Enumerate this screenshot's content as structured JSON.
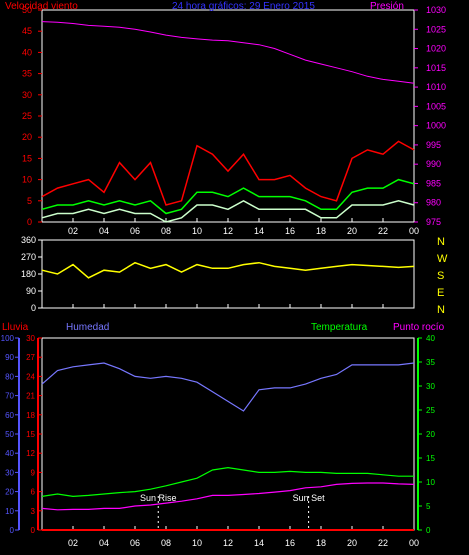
{
  "chart_data": [
    {
      "type": "line",
      "title": "24 hora gráficos: 29 Enero 2015",
      "left_axis_label": "Velocidad viento",
      "right_axis_label": "Presión",
      "ylim_left": [
        0,
        50
      ],
      "yticks_left": [
        "0",
        "5",
        "10",
        "15",
        "20",
        "25",
        "30",
        "35",
        "40",
        "45",
        "50"
      ],
      "ylim_right": [
        975,
        1030
      ],
      "yticks_right": [
        "975",
        "980",
        "985",
        "990",
        "995",
        "1000",
        "1005",
        "1010",
        "1015",
        "1020",
        "1025",
        "1030"
      ],
      "xlim": [
        0,
        24
      ],
      "xticks": [
        "02",
        "04",
        "06",
        "08",
        "10",
        "12",
        "14",
        "16",
        "18",
        "20",
        "22",
        "00"
      ],
      "series": [
        {
          "color": "#ff00ff",
          "axis": "right",
          "x": [
            0,
            1,
            2,
            3,
            4,
            5,
            6,
            7,
            8,
            9,
            10,
            11,
            12,
            13,
            14,
            15,
            16,
            17,
            18,
            19,
            20,
            21,
            22,
            23,
            24
          ],
          "values": [
            1027.0,
            1026.8,
            1026.5,
            1026.0,
            1025.8,
            1025.5,
            1025.0,
            1024.3,
            1023.5,
            1022.9,
            1022.5,
            1022.2,
            1022.0,
            1021.5,
            1021.0,
            1020.0,
            1018.5,
            1017.0,
            1016.0,
            1015.0,
            1014.0,
            1012.8,
            1012.0,
            1011.5,
            1011.0
          ]
        },
        {
          "color": "#ff0000",
          "axis": "left",
          "x": [
            0,
            1,
            2,
            3,
            4,
            5,
            6,
            7,
            8,
            9,
            10,
            11,
            12,
            13,
            14,
            15,
            16,
            17,
            18,
            19,
            20,
            21,
            22,
            23,
            24
          ],
          "values": [
            6,
            8,
            9,
            10,
            7,
            14,
            10,
            14,
            4,
            5,
            18,
            16,
            12,
            16,
            10,
            10,
            11,
            8,
            6,
            5,
            15,
            17,
            16,
            19,
            17
          ]
        },
        {
          "color": "#00ff00",
          "axis": "left",
          "x": [
            0,
            1,
            2,
            3,
            4,
            5,
            6,
            7,
            8,
            9,
            10,
            11,
            12,
            13,
            14,
            15,
            16,
            17,
            18,
            19,
            20,
            21,
            22,
            23,
            24
          ],
          "values": [
            3,
            4,
            4,
            5,
            4,
            5,
            4,
            5,
            2,
            3,
            7,
            7,
            6,
            8,
            6,
            6,
            6,
            5,
            3,
            3,
            7,
            8,
            8,
            10,
            9
          ]
        },
        {
          "color": "#ccffcc",
          "axis": "left",
          "x": [
            0,
            1,
            2,
            3,
            4,
            5,
            6,
            7,
            8,
            9,
            10,
            11,
            12,
            13,
            14,
            15,
            16,
            17,
            18,
            19,
            20,
            21,
            22,
            23,
            24
          ],
          "values": [
            1,
            2,
            2,
            3,
            2,
            3,
            2,
            2,
            0,
            1,
            4,
            4,
            3,
            5,
            3,
            3,
            3,
            3,
            1,
            1,
            4,
            4,
            4,
            5,
            4
          ]
        }
      ]
    },
    {
      "type": "line",
      "ylim": [
        0,
        360
      ],
      "yticks": [
        "0",
        "90",
        "180",
        "270",
        "360"
      ],
      "compass_labels": [
        "N",
        "W",
        "S",
        "E",
        "N"
      ],
      "xlim": [
        0,
        24
      ],
      "series": [
        {
          "color": "#ffff00",
          "x": [
            0,
            1,
            2,
            3,
            4,
            5,
            6,
            7,
            8,
            9,
            10,
            11,
            12,
            13,
            14,
            15,
            16,
            17,
            18,
            19,
            20,
            21,
            22,
            23,
            24
          ],
          "values": [
            200,
            180,
            230,
            160,
            200,
            190,
            240,
            210,
            230,
            190,
            230,
            210,
            210,
            230,
            240,
            220,
            210,
            200,
            210,
            220,
            230,
            225,
            220,
            215,
            220
          ]
        }
      ]
    },
    {
      "type": "line",
      "labels": {
        "rain": "Lluvia",
        "humidity": "Humedad",
        "temperature": "Temperatura",
        "dewpoint": "Punto rocío"
      },
      "humidity_axis": {
        "ylim": [
          0,
          100
        ],
        "ticks": [
          "0",
          "10",
          "20",
          "30",
          "40",
          "50",
          "60",
          "70",
          "80",
          "90",
          "100"
        ]
      },
      "rain_axis": {
        "ylim": [
          0,
          30
        ],
        "ticks": [
          "0",
          "3",
          "6",
          "9",
          "12",
          "15",
          "18",
          "21",
          "24",
          "27",
          "30"
        ]
      },
      "temp_axis": {
        "ylim": [
          0,
          40
        ],
        "ticks": [
          "0",
          "5",
          "10",
          "15",
          "20",
          "25",
          "30",
          "35",
          "40"
        ]
      },
      "xlim": [
        0,
        24
      ],
      "xticks": [
        "02",
        "04",
        "06",
        "08",
        "10",
        "12",
        "14",
        "16",
        "18",
        "20",
        "22",
        "00"
      ],
      "annotations": [
        {
          "label": "Sun Rise",
          "x": 7.5
        },
        {
          "label": "Sun Set",
          "x": 17.2
        }
      ],
      "series": [
        {
          "name": "Humedad",
          "color": "#7777ff",
          "axis": "humidity",
          "x": [
            0,
            1,
            2,
            3,
            4,
            5,
            6,
            7,
            8,
            9,
            10,
            11,
            12,
            13,
            14,
            15,
            16,
            17,
            18,
            19,
            20,
            21,
            22,
            23,
            24
          ],
          "values": [
            76,
            83,
            85,
            86,
            87,
            84,
            80,
            79,
            80,
            79,
            77,
            72,
            67,
            62,
            73,
            74,
            74,
            76,
            79,
            81,
            86,
            86,
            86,
            86,
            87
          ]
        },
        {
          "name": "Temperatura",
          "color": "#00ff00",
          "axis": "temp",
          "x": [
            0,
            1,
            2,
            3,
            4,
            5,
            6,
            7,
            8,
            9,
            10,
            11,
            12,
            13,
            14,
            15,
            16,
            17,
            18,
            19,
            20,
            21,
            22,
            23,
            24
          ],
          "values": [
            7,
            7.5,
            7,
            7.2,
            7.5,
            7.8,
            8,
            8.5,
            9.2,
            10,
            10.8,
            12.5,
            13,
            12.5,
            12,
            12,
            12.2,
            12,
            12,
            11.8,
            11.8,
            11.8,
            11.5,
            11.2,
            11.2
          ]
        },
        {
          "name": "Punto rocío",
          "color": "#ff00ff",
          "axis": "temp",
          "x": [
            0,
            1,
            2,
            3,
            4,
            5,
            6,
            7,
            8,
            9,
            10,
            11,
            12,
            13,
            14,
            15,
            16,
            17,
            18,
            19,
            20,
            21,
            22,
            23,
            24
          ],
          "values": [
            4.5,
            4.2,
            4.3,
            4.3,
            4.5,
            4.5,
            5,
            5.2,
            5.6,
            6,
            6.5,
            7.2,
            7.2,
            7.4,
            7.6,
            7.9,
            8.2,
            8.8,
            9.0,
            9.5,
            9.7,
            9.8,
            9.8,
            9.6,
            9.5
          ]
        },
        {
          "name": "Lluvia",
          "color": "#ff0000",
          "axis": "rain",
          "x": [
            0,
            24
          ],
          "values": [
            0,
            0
          ]
        }
      ]
    }
  ]
}
